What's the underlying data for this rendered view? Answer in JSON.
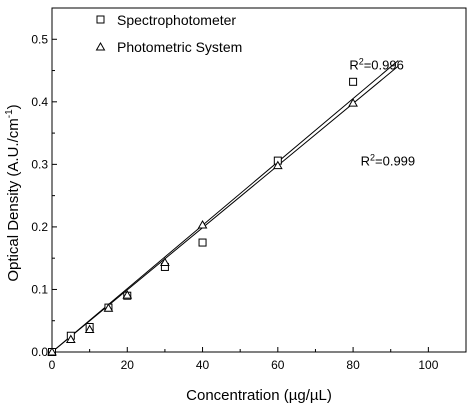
{
  "chart_data": {
    "type": "scatter",
    "title": "",
    "xlabel": "Concentration (µg/µL)",
    "ylabel_main": "Optical Density (A.U./cm",
    "ylabel_sup": "-1",
    "ylabel_close": ")",
    "xlim": [
      0,
      110
    ],
    "ylim": [
      0,
      0.55
    ],
    "xticks": [
      0,
      20,
      40,
      60,
      80,
      100
    ],
    "yticks": [
      0.0,
      0.1,
      0.2,
      0.3,
      0.4,
      0.5
    ],
    "ytick_labels": [
      "0.0",
      "0.1",
      "0.2",
      "0.3",
      "0.4",
      "0.5"
    ],
    "legend_position": "top-left",
    "grid": false,
    "series": [
      {
        "name": "Spectrophotometer",
        "marker": "square",
        "x": [
          0,
          5,
          10,
          15,
          20,
          30,
          40,
          60,
          80
        ],
        "y": [
          0.0,
          0.026,
          0.04,
          0.071,
          0.09,
          0.136,
          0.175,
          0.306,
          0.432
        ],
        "fit": {
          "x": [
            0,
            92
          ],
          "y": [
            0.0,
            0.466
          ]
        }
      },
      {
        "name": "Photometric System",
        "marker": "triangle",
        "x": [
          0,
          5,
          10,
          15,
          20,
          30,
          40,
          60,
          80
        ],
        "y": [
          0.0,
          0.02,
          0.036,
          0.07,
          0.091,
          0.143,
          0.203,
          0.298,
          0.398
        ],
        "fit": {
          "x": [
            0,
            92
          ],
          "y": [
            0.0,
            0.457
          ]
        }
      }
    ],
    "annotations": [
      {
        "text_main": "R",
        "text_sup": "2",
        "text_rest": "=0.996",
        "x": 79,
        "y": 0.452
      },
      {
        "text_main": "R",
        "text_sup": "2",
        "text_rest": "=0.999",
        "x": 82,
        "y": 0.298
      }
    ]
  }
}
